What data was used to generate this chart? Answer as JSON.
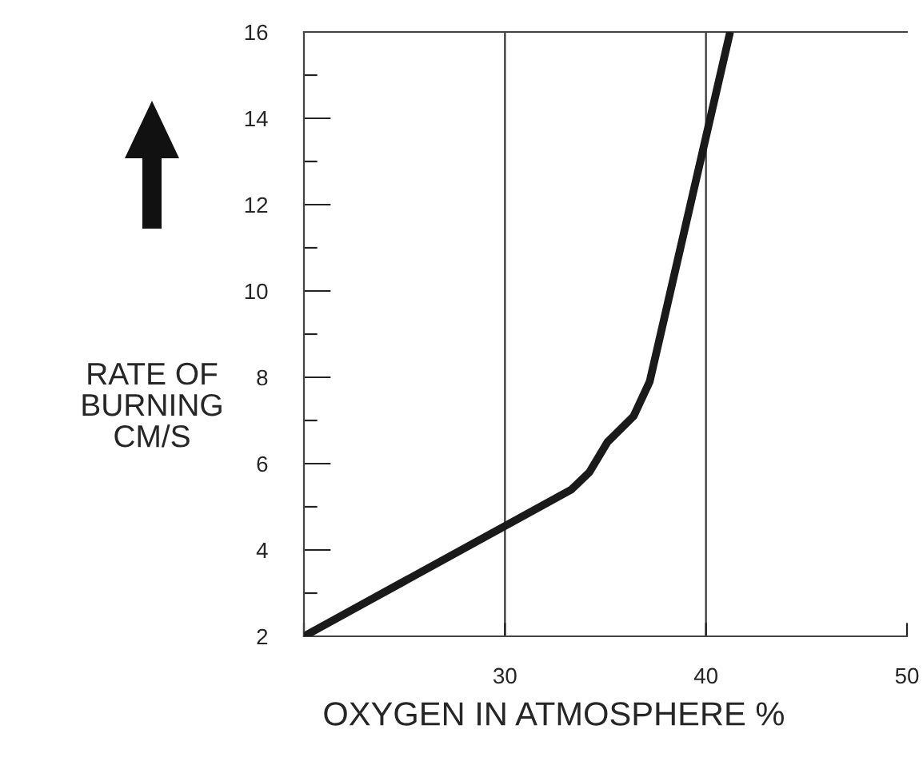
{
  "chart_data": {
    "type": "line",
    "xlabel": "OXYGEN IN ATMOSPHERE %",
    "ylabel": "RATE OF\nBURNING\nCM/S",
    "series": [
      {
        "color": "#1a1a1a",
        "x": [
          20,
          33.3,
          34.2,
          35.1,
          36.4,
          37.2,
          41.2
        ],
        "values": [
          2,
          5.4,
          5.8,
          6.5,
          7.1,
          7.9,
          16
        ]
      }
    ],
    "xlim": [
      20,
      50
    ],
    "ylim": [
      2,
      16
    ],
    "xticks": [
      {
        "value": 20,
        "label": null
      },
      30,
      40,
      50
    ],
    "yticks": [
      2,
      {
        "value": 3,
        "label": null
      },
      4,
      {
        "value": 5,
        "label": null
      },
      6,
      {
        "value": 7,
        "label": null
      },
      8,
      {
        "value": 9,
        "label": null
      },
      10,
      {
        "value": 11,
        "label": null
      },
      12,
      {
        "value": 13,
        "label": null
      },
      14,
      {
        "value": 15,
        "label": null
      },
      16
    ],
    "grid": "x",
    "marker": "none",
    "line_style": "solid",
    "legend": false
  }
}
